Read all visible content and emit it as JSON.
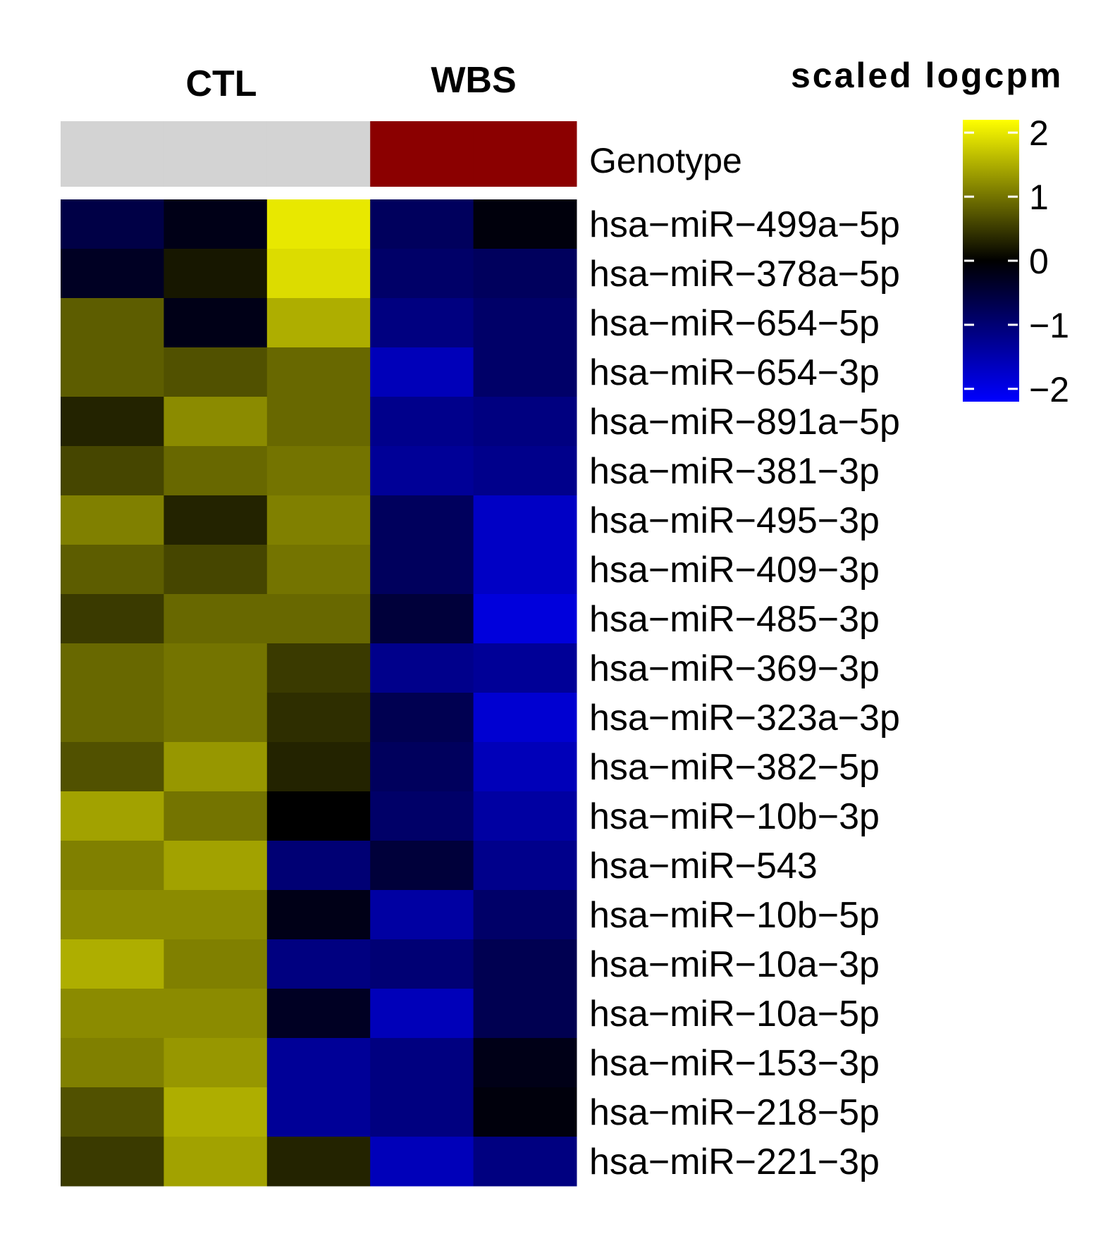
{
  "chart_data": {
    "type": "heatmap",
    "group_labels": [
      "CTL",
      "WBS"
    ],
    "annotation": {
      "label": "Genotype",
      "values": [
        "CTL",
        "CTL",
        "CTL",
        "WBS",
        "WBS"
      ],
      "colors": {
        "CTL": "#d3d3d3",
        "WBS": "#8b0000"
      }
    },
    "rows": [
      "hsa−miR−499a−5p",
      "hsa−miR−378a−5p",
      "hsa−miR−654−5p",
      "hsa−miR−654−3p",
      "hsa−miR−891a−5p",
      "hsa−miR−381−3p",
      "hsa−miR−495−3p",
      "hsa−miR−409−3p",
      "hsa−miR−485−3p",
      "hsa−miR−369−3p",
      "hsa−miR−323a−3p",
      "hsa−miR−382−5p",
      "hsa−miR−10b−3p",
      "hsa−miR−543",
      "hsa−miR−10b−5p",
      "hsa−miR−10a−3p",
      "hsa−miR−10a−5p",
      "hsa−miR−153−3p",
      "hsa−miR−218−5p",
      "hsa−miR−221−3p"
    ],
    "values": [
      [
        -0.6,
        -0.2,
        2.0,
        -0.8,
        -0.1
      ],
      [
        -0.3,
        0.2,
        1.9,
        -0.9,
        -0.8
      ],
      [
        0.8,
        -0.2,
        1.5,
        -1.1,
        -0.9
      ],
      [
        0.8,
        0.7,
        0.9,
        -1.6,
        -0.9
      ],
      [
        0.3,
        1.2,
        0.9,
        -1.2,
        -1.1
      ],
      [
        0.6,
        0.9,
        1.0,
        -1.3,
        -1.2
      ],
      [
        1.1,
        0.3,
        1.1,
        -0.8,
        -1.7
      ],
      [
        0.8,
        0.6,
        1.0,
        -0.8,
        -1.7
      ],
      [
        0.5,
        0.9,
        0.9,
        -0.5,
        -1.9
      ],
      [
        0.9,
        1.0,
        0.5,
        -1.2,
        -1.3
      ],
      [
        0.9,
        1.0,
        0.4,
        -0.7,
        -1.8
      ],
      [
        0.7,
        1.3,
        0.3,
        -0.8,
        -1.6
      ],
      [
        1.4,
        1.0,
        0.0,
        -0.9,
        -1.4
      ],
      [
        1.1,
        1.4,
        -1.0,
        -0.5,
        -1.2
      ],
      [
        1.2,
        1.2,
        -0.2,
        -1.4,
        -0.9
      ],
      [
        1.5,
        1.1,
        -1.1,
        -1.0,
        -0.7
      ],
      [
        1.2,
        1.2,
        -0.3,
        -1.6,
        -0.7
      ],
      [
        1.1,
        1.3,
        -1.3,
        -1.1,
        -0.2
      ],
      [
        0.7,
        1.5,
        -1.3,
        -1.1,
        -0.1
      ],
      [
        0.5,
        1.4,
        0.3,
        -1.6,
        -1.1
      ]
    ],
    "legend": {
      "title": "scaled logcpm",
      "ticks": [
        2,
        1,
        0,
        -1,
        -2
      ],
      "tick_labels": [
        "2",
        "1",
        "0",
        "−1",
        "−2"
      ],
      "range": [
        -2.2,
        2.2
      ],
      "colors": {
        "low": "#0000ff",
        "mid": "#000000",
        "high": "#ffff00"
      }
    }
  }
}
